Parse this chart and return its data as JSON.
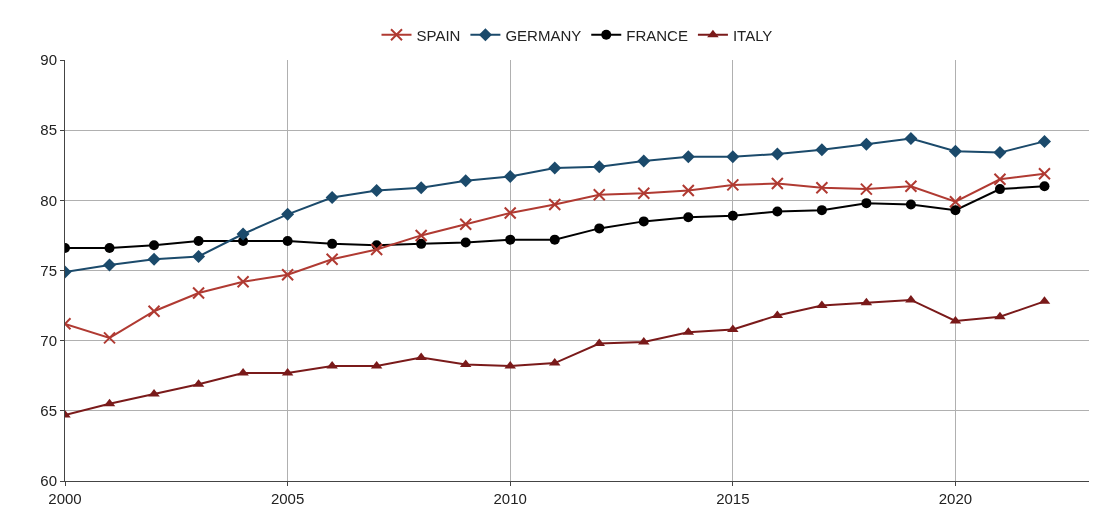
{
  "chart_data": {
    "type": "line",
    "x": [
      2000,
      2001,
      2002,
      2003,
      2004,
      2005,
      2006,
      2007,
      2008,
      2009,
      2010,
      2011,
      2012,
      2013,
      2014,
      2015,
      2016,
      2017,
      2018,
      2019,
      2020,
      2021,
      2022
    ],
    "series": [
      {
        "name": "SPAIN",
        "color": "#b03a32",
        "marker": "cross",
        "values": [
          71.2,
          70.2,
          72.1,
          73.4,
          74.2,
          74.7,
          75.8,
          76.5,
          77.5,
          78.3,
          79.1,
          79.7,
          80.4,
          80.5,
          80.7,
          81.1,
          81.2,
          80.9,
          80.8,
          81.0,
          79.9,
          81.5,
          81.9
        ]
      },
      {
        "name": "GERMANY",
        "color": "#1b4a6b",
        "marker": "diamond",
        "values": [
          74.9,
          75.4,
          75.8,
          76.0,
          77.6,
          79.0,
          80.2,
          80.7,
          80.9,
          81.4,
          81.7,
          82.3,
          82.4,
          82.8,
          83.1,
          83.1,
          83.3,
          83.6,
          84.0,
          84.4,
          83.5,
          83.4,
          84.2
        ]
      },
      {
        "name": "FRANCE",
        "color": "#000000",
        "marker": "circle",
        "values": [
          76.6,
          76.6,
          76.8,
          77.1,
          77.1,
          77.1,
          76.9,
          76.8,
          76.9,
          77.0,
          77.2,
          77.2,
          78.0,
          78.5,
          78.8,
          78.9,
          79.2,
          79.3,
          79.8,
          79.7,
          79.3,
          80.8,
          81.0
        ]
      },
      {
        "name": "ITALY",
        "color": "#7a1a1a",
        "marker": "triangle",
        "values": [
          64.7,
          65.5,
          66.2,
          66.9,
          67.7,
          67.7,
          68.2,
          68.2,
          68.8,
          68.3,
          68.2,
          68.4,
          69.8,
          69.9,
          70.6,
          70.8,
          71.8,
          72.5,
          72.7,
          72.9,
          71.4,
          71.7,
          72.8
        ]
      }
    ],
    "xlim": [
      2000,
      2023
    ],
    "xticks": [
      2000,
      2005,
      2010,
      2015,
      2020
    ],
    "ylim": [
      60,
      90
    ],
    "yticks": [
      60,
      65,
      70,
      75,
      80,
      85,
      90
    ],
    "grid": true,
    "legend": "top",
    "line_style": "solid"
  }
}
